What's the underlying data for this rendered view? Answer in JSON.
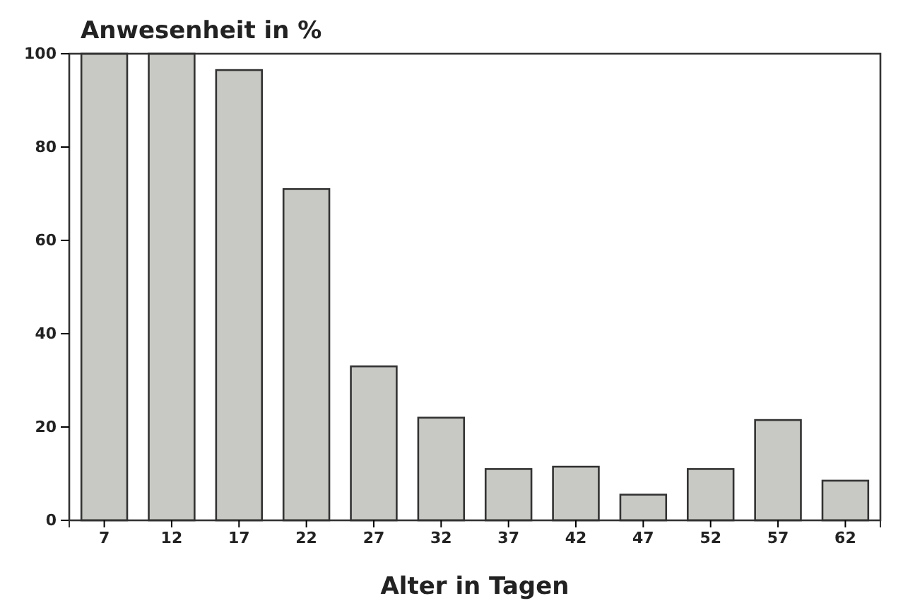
{
  "chart_data": {
    "type": "bar",
    "ylabel": "Anwesenheit in %",
    "xlabel": "Alter in Tagen",
    "categories": [
      "7",
      "12",
      "17",
      "22",
      "27",
      "32",
      "37",
      "42",
      "47",
      "52",
      "57",
      "62"
    ],
    "values": [
      100,
      100,
      96.5,
      71,
      33,
      22,
      11,
      11.5,
      5.5,
      11,
      21.5,
      8.5
    ],
    "color": "#c8c8c4",
    "ylim": [
      0,
      100
    ],
    "yticks": [
      0,
      20,
      40,
      60,
      80,
      100
    ],
    "grid": false
  }
}
